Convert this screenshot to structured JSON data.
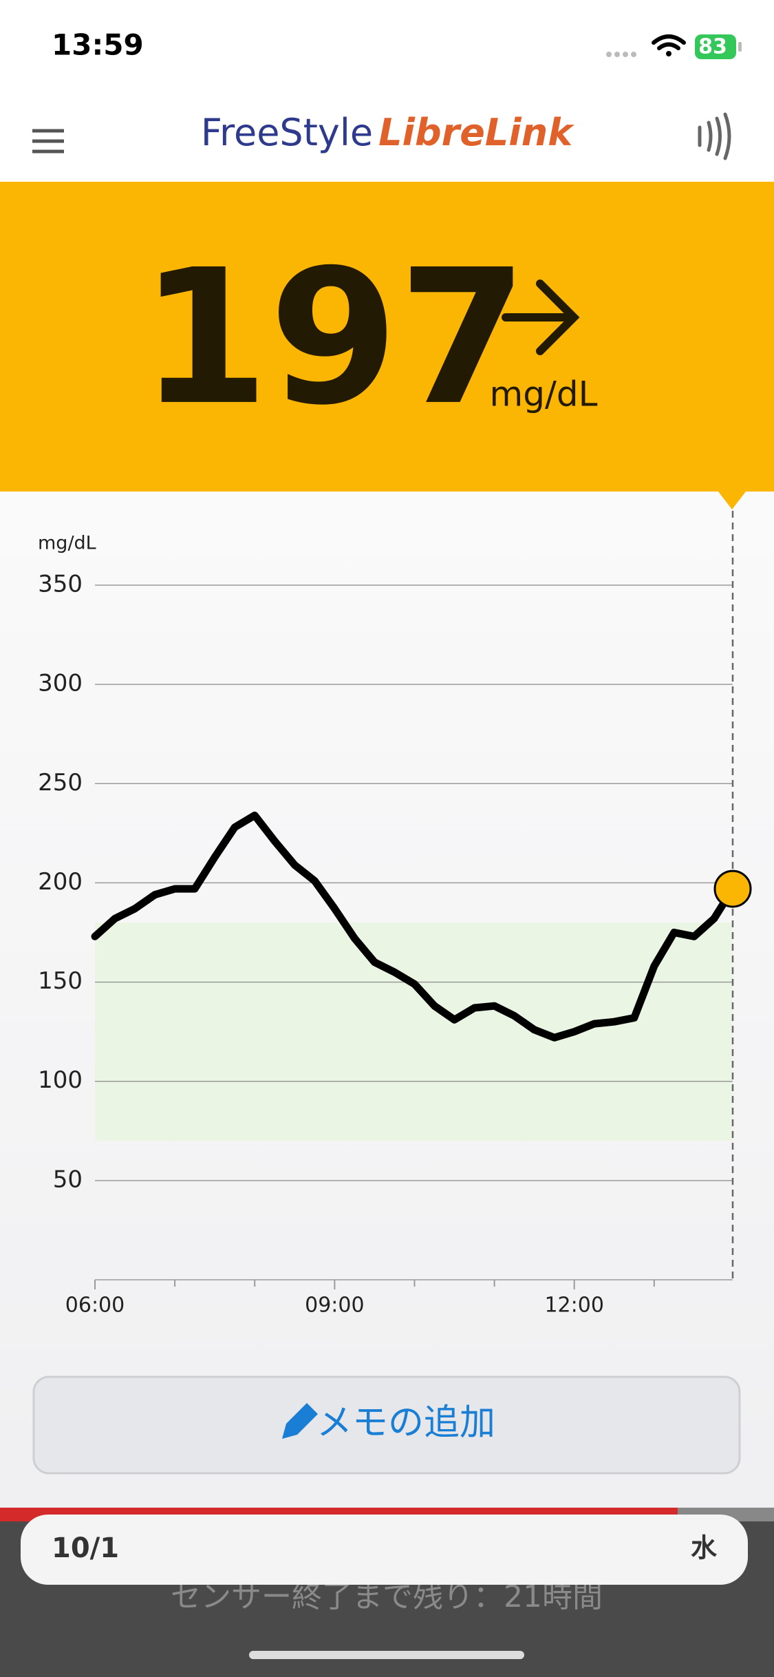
{
  "status": {
    "time": "13:59",
    "battery": "83"
  },
  "header": {
    "logo_part1": "FreeStyle",
    "logo_part2": "LibreLink"
  },
  "reading": {
    "value": 197,
    "unit": "mg/dL"
  },
  "chart_data": {
    "type": "line",
    "y_label": "mg/dL",
    "color": "#000000",
    "current_point_color": "#fbb603",
    "x": [
      "06:00",
      "06:15",
      "06:30",
      "06:45",
      "07:00",
      "07:15",
      "07:30",
      "07:45",
      "08:00",
      "08:15",
      "08:30",
      "08:45",
      "09:00",
      "09:15",
      "09:30",
      "09:45",
      "10:00",
      "10:15",
      "10:30",
      "10:45",
      "11:00",
      "11:15",
      "11:30",
      "11:45",
      "12:00",
      "12:15",
      "12:30",
      "12:45",
      "13:00",
      "13:15",
      "13:30",
      "13:45",
      "13:59"
    ],
    "values": [
      173,
      182,
      187,
      194,
      197,
      197,
      213,
      228,
      234,
      221,
      209,
      201,
      187,
      172,
      160,
      155,
      149,
      138,
      131,
      137,
      138,
      133,
      126,
      122,
      125,
      129,
      130,
      132,
      158,
      175,
      173,
      182,
      197
    ],
    "xlim": [
      "06:00",
      "13:59"
    ],
    "xticks": [
      "06:00",
      "09:00",
      "12:00"
    ],
    "x_minor_ticks": [
      "07:00",
      "08:00",
      "10:00",
      "11:00",
      "13:00"
    ],
    "ylim": [
      0,
      350
    ],
    "yticks": [
      50,
      100,
      150,
      200,
      250,
      300,
      350
    ],
    "grid": true,
    "target_range": [
      70,
      180
    ],
    "target_color": "#ebf5e3"
  },
  "button": {
    "label": "メモの追加"
  },
  "footer": {
    "date": "10/1",
    "weekday": "水",
    "sensor": "センサー終了まで残り：21時間"
  }
}
